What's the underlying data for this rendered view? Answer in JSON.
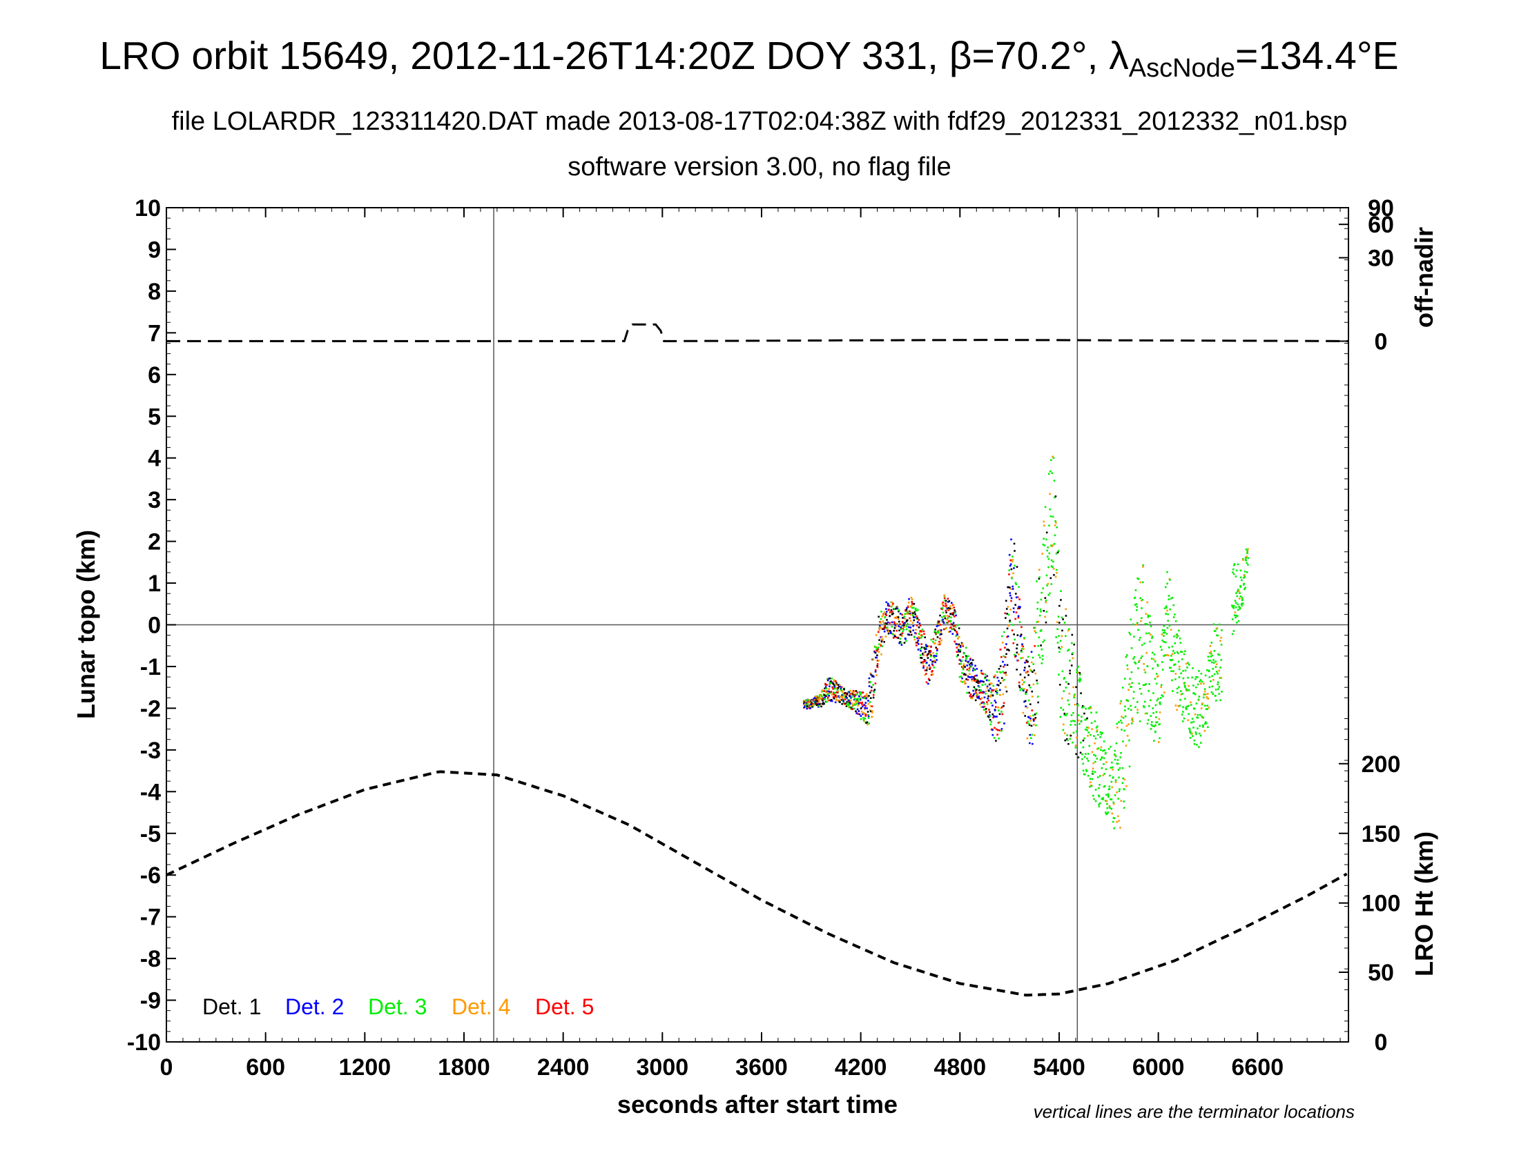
{
  "chart_data": {
    "type": "scatter",
    "title_parts": {
      "a": "LRO orbit 15649, 2012-11-26T14:20Z DOY 331, β=70.2°, λ",
      "sub": "AscNode",
      "b": "=134.4°E"
    },
    "subtitle1": "file LOLARDR_123311420.DAT made 2013-08-17T02:04:38Z with fdf29_2012331_2012332_n01.bsp",
    "subtitle2": "software version 3.00, no flag file",
    "xlabel": "seconds after start time",
    "ylabel": "Lunar topo (km)",
    "y2_top_label": "off-nadir",
    "y2_bottom_label": "LRO Ht (km)",
    "note": "vertical lines are the terminator locations",
    "xlim": [
      0,
      7150
    ],
    "ylim": [
      -10,
      10
    ],
    "x_ticks": [
      "0",
      "600",
      "1200",
      "1800",
      "2400",
      "3000",
      "3600",
      "4200",
      "4800",
      "5400",
      "6000",
      "6600"
    ],
    "y_ticks": [
      "-10",
      "-9",
      "-8",
      "-7",
      "-6",
      "-5",
      "-4",
      "-3",
      "-2",
      "-1",
      "0",
      "1",
      "2",
      "3",
      "4",
      "5",
      "6",
      "7",
      "8",
      "9",
      "10"
    ],
    "offnadir_ticks": [
      {
        "label": "0",
        "y": 6.8
      },
      {
        "label": "30",
        "y": 8.8
      },
      {
        "label": "60",
        "y": 9.6
      },
      {
        "label": "90",
        "y": 10
      }
    ],
    "height_ticks": [
      {
        "label": "0",
        "y": -10
      },
      {
        "label": "50",
        "y": -8.33
      },
      {
        "label": "100",
        "y": -6.67
      },
      {
        "label": "150",
        "y": -5
      },
      {
        "label": "200",
        "y": -3.33
      }
    ],
    "terminator_x": [
      1980,
      5510
    ],
    "grid_horizontal_at": 0,
    "legend": [
      {
        "label": "Det. 1",
        "color": "#000000"
      },
      {
        "label": "Det. 2",
        "color": "#0000ff"
      },
      {
        "label": "Det. 3",
        "color": "#00ee00"
      },
      {
        "label": "Det. 4",
        "color": "#ff9900"
      },
      {
        "label": "Det. 5",
        "color": "#ff0000"
      }
    ],
    "legend_position": "bottom-left",
    "lro_height_line": {
      "x": [
        0,
        400,
        800,
        1200,
        1650,
        2000,
        2400,
        2800,
        3200,
        3600,
        4000,
        4400,
        4800,
        5200,
        5400,
        5700,
        6100,
        6500,
        6900,
        7150
      ],
      "topo": [
        -6.0,
        -5.25,
        -4.55,
        -3.95,
        -3.52,
        -3.6,
        -4.1,
        -4.8,
        -5.7,
        -6.6,
        -7.4,
        -8.1,
        -8.6,
        -8.88,
        -8.85,
        -8.6,
        -8.05,
        -7.3,
        -6.5,
        -5.95
      ]
    },
    "offnadir_line": {
      "x": [
        0,
        2770,
        2790,
        2820,
        2960,
        2990,
        3010,
        4200,
        5000,
        7150
      ],
      "topo": [
        6.8,
        6.8,
        7.05,
        7.2,
        7.2,
        7.05,
        6.8,
        6.82,
        6.83,
        6.8
      ]
    },
    "topo_profile": {
      "x": [
        3850,
        3950,
        4000,
        4050,
        4100,
        4150,
        4200,
        4230,
        4260,
        4300,
        4350,
        4400,
        4450,
        4500,
        4550,
        4600,
        4650,
        4700,
        4750,
        4800,
        4850,
        4900,
        4950,
        4980,
        5000,
        5030,
        5060,
        5080,
        5100,
        5130,
        5160,
        5200,
        5220,
        5240,
        5260,
        5280,
        5300,
        5320,
        5340,
        5360,
        5400,
        5450,
        5500,
        5550,
        5600,
        5650,
        5700,
        5730,
        5760,
        5800,
        5850,
        5900,
        5940,
        5980,
        6000,
        6050,
        6100,
        6150,
        6200,
        6250,
        6300,
        6330,
        6360,
        6400,
        6450,
        6500,
        6540
      ],
      "y": [
        -1.9,
        -1.8,
        -1.5,
        -1.6,
        -1.7,
        -1.8,
        -1.9,
        -2.0,
        -1.6,
        -0.4,
        0.2,
        0.1,
        -0.1,
        0.3,
        -0.2,
        -1.0,
        -0.5,
        0.3,
        0.2,
        -0.8,
        -1.2,
        -1.4,
        -1.6,
        -1.9,
        -2.1,
        -1.8,
        -1.2,
        -0.3,
        1.2,
        0.5,
        -0.6,
        -1.7,
        -1.9,
        -1.5,
        -0.5,
        0.3,
        1.0,
        1.8,
        2.4,
        2.8,
        -0.6,
        -1.4,
        -1.9,
        -2.6,
        -3.0,
        -3.4,
        -3.8,
        -3.7,
        -3.5,
        -2.3,
        -0.8,
        -0.3,
        -1.0,
        -1.9,
        -1.7,
        0.3,
        -0.8,
        -1.5,
        -1.9,
        -2.0,
        -1.4,
        -0.8,
        -1.0,
        -0.5,
        0.6,
        1.0,
        1.6
      ],
      "spread": [
        0.1,
        0.15,
        0.3,
        0.25,
        0.2,
        0.25,
        0.35,
        0.4,
        0.7,
        0.6,
        0.4,
        0.45,
        0.4,
        0.5,
        0.5,
        0.5,
        0.45,
        0.45,
        0.4,
        0.6,
        0.5,
        0.45,
        0.5,
        0.55,
        0.9,
        1.0,
        1.3,
        1.3,
        1.0,
        1.6,
        1.0,
        1.0,
        1.1,
        1.3,
        1.8,
        1.6,
        1.6,
        1.6,
        1.7,
        1.5,
        1.8,
        1.6,
        1.3,
        1.0,
        1.2,
        1.0,
        0.8,
        1.2,
        1.4,
        1.8,
        1.7,
        1.9,
        1.5,
        1.0,
        1.1,
        1.2,
        1.2,
        1.0,
        0.9,
        1.0,
        1.0,
        0.9,
        1.0,
        0.9,
        0.9,
        0.7,
        0.3
      ],
      "detectors_until": 5250
    }
  }
}
